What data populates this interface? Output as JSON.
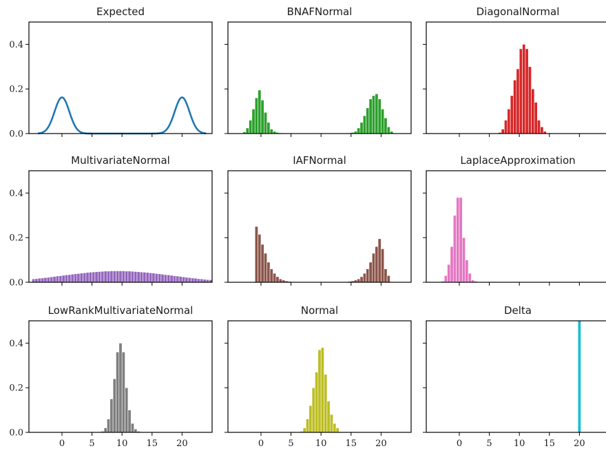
{
  "figure": {
    "colors": {
      "blue": "#1f77b4",
      "green": "#2ca02c",
      "red": "#d62728",
      "purple": "#9467bd",
      "brown": "#8c564b",
      "pink": "#e377c2",
      "gray": "#7f7f7f",
      "olive": "#bcbd22",
      "cyan": "#17becf"
    }
  },
  "chart_data": [
    {
      "type": "line",
      "title": "Expected",
      "color": "#1f77b4",
      "xlim": [
        -5.5,
        25
      ],
      "ylim": [
        0,
        0.5
      ],
      "xticks": [
        0,
        5,
        10,
        15,
        20
      ],
      "yticks": [
        0.0,
        0.2,
        0.4
      ],
      "show_xticklabels": false,
      "show_yticklabels": true,
      "series": [
        {
          "name": "",
          "mixture": {
            "means": [
              0,
              20
            ],
            "sd": 1.23,
            "weight": 0.5
          }
        }
      ]
    },
    {
      "type": "bar",
      "title": "BNAFNormal",
      "color": "#2ca02c",
      "xlim": [
        -5.5,
        25
      ],
      "ylim": [
        0,
        0.5
      ],
      "xticks": [
        0,
        5,
        10,
        15,
        20
      ],
      "yticks": [
        0.0,
        0.2,
        0.4
      ],
      "show_xticklabels": false,
      "show_yticklabels": false,
      "bin_start": -3,
      "bin_width": 0.5,
      "values": [
        0.007,
        0.025,
        0.06,
        0.11,
        0.16,
        0.195,
        0.15,
        0.095,
        0.05,
        0.02,
        0.01,
        0.005,
        0.003,
        0.002,
        0.001,
        0,
        0,
        0,
        0,
        0,
        0,
        0,
        0,
        0,
        0,
        0,
        0,
        0,
        0,
        0,
        0,
        0,
        0,
        0,
        0,
        0.003,
        0.005,
        0.01,
        0.025,
        0.05,
        0.08,
        0.115,
        0.155,
        0.17,
        0.178,
        0.155,
        0.11,
        0.07,
        0.03,
        0.01
      ]
    },
    {
      "type": "bar",
      "title": "DiagonalNormal",
      "color": "#d62728",
      "xlim": [
        -5.5,
        25
      ],
      "ylim": [
        0,
        0.5
      ],
      "xticks": [
        0,
        5,
        10,
        15,
        20
      ],
      "yticks": [
        0.0,
        0.2,
        0.4
      ],
      "show_xticklabels": false,
      "show_yticklabels": false,
      "bin_start": 6.5,
      "bin_width": 0.5,
      "values": [
        0.005,
        0.02,
        0.06,
        0.11,
        0.17,
        0.24,
        0.29,
        0.38,
        0.4,
        0.38,
        0.3,
        0.2,
        0.14,
        0.06,
        0.03,
        0.01
      ]
    },
    {
      "type": "bar",
      "title": "MultivariateNormal",
      "color": "#9467bd",
      "xlim": [
        -5.5,
        25
      ],
      "ylim": [
        0,
        0.5
      ],
      "xticks": [
        0,
        5,
        10,
        15,
        20
      ],
      "yticks": [
        0.0,
        0.2,
        0.4
      ],
      "show_xticklabels": false,
      "show_yticklabels": true,
      "bin_start": -5,
      "bin_width": 0.5,
      "values": [
        0.015,
        0.016,
        0.018,
        0.019,
        0.021,
        0.022,
        0.024,
        0.026,
        0.028,
        0.029,
        0.031,
        0.033,
        0.034,
        0.036,
        0.038,
        0.039,
        0.041,
        0.042,
        0.044,
        0.045,
        0.046,
        0.047,
        0.048,
        0.049,
        0.05,
        0.05,
        0.051,
        0.051,
        0.051,
        0.051,
        0.051,
        0.05,
        0.05,
        0.049,
        0.048,
        0.047,
        0.046,
        0.045,
        0.044,
        0.042,
        0.041,
        0.039,
        0.038,
        0.036,
        0.034,
        0.033,
        0.031,
        0.029,
        0.028,
        0.026,
        0.024,
        0.022,
        0.021,
        0.019,
        0.018,
        0.016,
        0.015,
        0.013,
        0.012,
        0.011
      ]
    },
    {
      "type": "bar",
      "title": "IAFNormal",
      "color": "#8c564b",
      "xlim": [
        -5.5,
        25
      ],
      "ylim": [
        0,
        0.5
      ],
      "xticks": [
        0,
        5,
        10,
        15,
        20
      ],
      "yticks": [
        0.0,
        0.2,
        0.4
      ],
      "show_xticklabels": false,
      "show_yticklabels": false,
      "bin_start": -1,
      "bin_width": 0.5,
      "values": [
        0.25,
        0.215,
        0.17,
        0.13,
        0.09,
        0.06,
        0.04,
        0.025,
        0.015,
        0.01,
        0.006,
        0.004,
        0.002,
        0.001,
        0,
        0,
        0,
        0,
        0,
        0,
        0,
        0,
        0,
        0,
        0,
        0,
        0,
        0,
        0,
        0,
        0.002,
        0.004,
        0.006,
        0.01,
        0.015,
        0.025,
        0.04,
        0.06,
        0.09,
        0.13,
        0.16,
        0.195,
        0.15,
        0.06,
        0.03
      ]
    },
    {
      "type": "bar",
      "title": "LaplaceApproximation",
      "color": "#e377c2",
      "xlim": [
        -5.5,
        25
      ],
      "ylim": [
        0,
        0.5
      ],
      "xticks": [
        0,
        5,
        10,
        15,
        20
      ],
      "yticks": [
        0.0,
        0.2,
        0.4
      ],
      "show_xticklabels": false,
      "show_yticklabels": false,
      "bin_start": -3,
      "bin_width": 0.5,
      "values": [
        0.005,
        0.03,
        0.08,
        0.16,
        0.3,
        0.38,
        0.38,
        0.2,
        0.1,
        0.04,
        0.01,
        0.005
      ]
    },
    {
      "type": "bar",
      "title": "LowRankMultivariateNormal",
      "color": "#7f7f7f",
      "xlim": [
        -5.5,
        25
      ],
      "ylim": [
        0,
        0.5
      ],
      "xticks": [
        0,
        5,
        10,
        15,
        20
      ],
      "yticks": [
        0.0,
        0.2,
        0.4
      ],
      "show_xticklabels": true,
      "show_yticklabels": true,
      "bin_start": 6.5,
      "bin_width": 0.5,
      "values": [
        0.005,
        0.02,
        0.06,
        0.15,
        0.24,
        0.36,
        0.4,
        0.36,
        0.2,
        0.1,
        0.04,
        0.015,
        0.005
      ]
    },
    {
      "type": "bar",
      "title": "Normal",
      "color": "#bcbd22",
      "xlim": [
        -5.5,
        25
      ],
      "ylim": [
        0,
        0.5
      ],
      "xticks": [
        0,
        5,
        10,
        15,
        20
      ],
      "yticks": [
        0.0,
        0.2,
        0.4
      ],
      "show_xticklabels": true,
      "show_yticklabels": false,
      "bin_start": 6.5,
      "bin_width": 0.5,
      "values": [
        0.005,
        0.02,
        0.06,
        0.12,
        0.2,
        0.27,
        0.37,
        0.38,
        0.26,
        0.14,
        0.08,
        0.04,
        0.02
      ]
    },
    {
      "type": "bar",
      "title": "Delta",
      "color": "#17becf",
      "xlim": [
        -5.5,
        25
      ],
      "ylim": [
        0,
        0.5
      ],
      "xticks": [
        0,
        5,
        10,
        15,
        20
      ],
      "yticks": [
        0.0,
        0.2,
        0.4
      ],
      "show_xticklabels": true,
      "show_yticklabels": false,
      "bin_start": 19.75,
      "bin_width": 0.5,
      "values": [
        0.5
      ]
    }
  ]
}
